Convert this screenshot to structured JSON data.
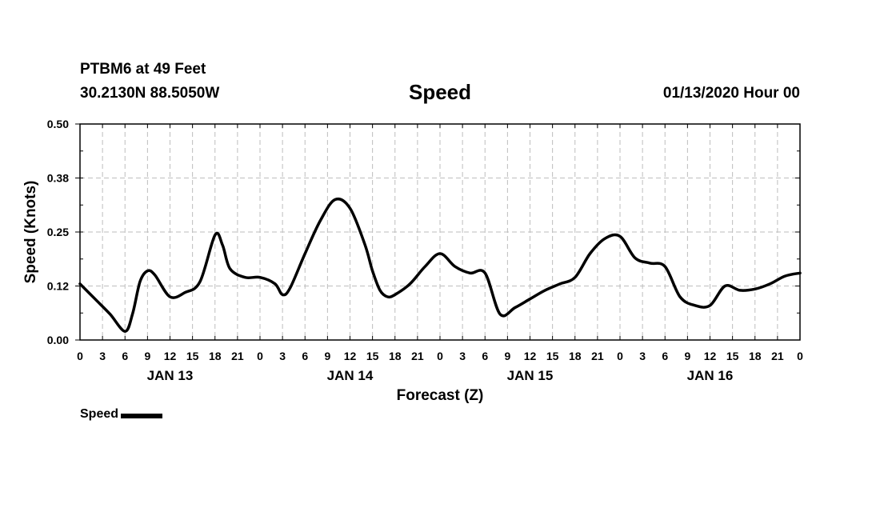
{
  "header": {
    "station": "PTBM6 at 49 Feet",
    "coords": "30.2130N 88.5050W",
    "title": "Speed",
    "datestamp": "01/13/2020 Hour 00"
  },
  "legend": {
    "label": "Speed",
    "color": "#000000"
  },
  "chart_data": {
    "type": "line",
    "title": "Speed",
    "xlabel": "Forecast (Z)",
    "ylabel": "Speed (Knots)",
    "ylim": [
      0,
      0.5
    ],
    "yticks": [
      "0.00",
      "0.12",
      "0.25",
      "0.38",
      "0.50"
    ],
    "ytick_values": [
      0,
      0.125,
      0.25,
      0.375,
      0.5
    ],
    "xlim": [
      0,
      96
    ],
    "xtick_hours": [
      0,
      3,
      6,
      9,
      12,
      15,
      18,
      21,
      24,
      27,
      30,
      33,
      36,
      39,
      42,
      45,
      48,
      51,
      54,
      57,
      60,
      63,
      66,
      69,
      72,
      75,
      78,
      81,
      84,
      87,
      90,
      93,
      96
    ],
    "xtick_labels": [
      "0",
      "3",
      "6",
      "9",
      "12",
      "15",
      "18",
      "21",
      "0",
      "3",
      "6",
      "9",
      "12",
      "15",
      "18",
      "21",
      "0",
      "3",
      "6",
      "9",
      "12",
      "15",
      "18",
      "21",
      "0",
      "3",
      "6",
      "9",
      "12",
      "15",
      "18",
      "21",
      "0"
    ],
    "day_labels": [
      {
        "label": "JAN 13",
        "hour": 12
      },
      {
        "label": "JAN 14",
        "hour": 36
      },
      {
        "label": "JAN 15",
        "hour": 60
      },
      {
        "label": "JAN 16",
        "hour": 84
      }
    ],
    "grid": true,
    "series": [
      {
        "name": "Speed",
        "x": [
          0,
          2,
          4,
          6,
          7,
          8,
          9,
          10,
          12,
          14,
          16,
          18,
          19,
          20,
          22,
          24,
          26,
          27,
          28,
          30,
          32,
          34,
          36,
          38,
          39,
          40,
          41,
          42,
          44,
          46,
          48,
          50,
          52,
          54,
          56,
          58,
          60,
          62,
          64,
          66,
          68,
          70,
          72,
          74,
          76,
          78,
          80,
          82,
          84,
          86,
          88,
          90,
          92,
          94,
          96
        ],
        "values": [
          0.13,
          0.095,
          0.06,
          0.02,
          0.06,
          0.135,
          0.16,
          0.15,
          0.1,
          0.11,
          0.135,
          0.243,
          0.22,
          0.165,
          0.145,
          0.145,
          0.13,
          0.105,
          0.12,
          0.2,
          0.275,
          0.325,
          0.305,
          0.22,
          0.16,
          0.115,
          0.1,
          0.105,
          0.13,
          0.17,
          0.2,
          0.17,
          0.155,
          0.155,
          0.06,
          0.075,
          0.095,
          0.115,
          0.13,
          0.145,
          0.2,
          0.235,
          0.24,
          0.19,
          0.178,
          0.17,
          0.1,
          0.08,
          0.08,
          0.125,
          0.115,
          0.118,
          0.13,
          0.148,
          0.155
        ]
      }
    ]
  }
}
